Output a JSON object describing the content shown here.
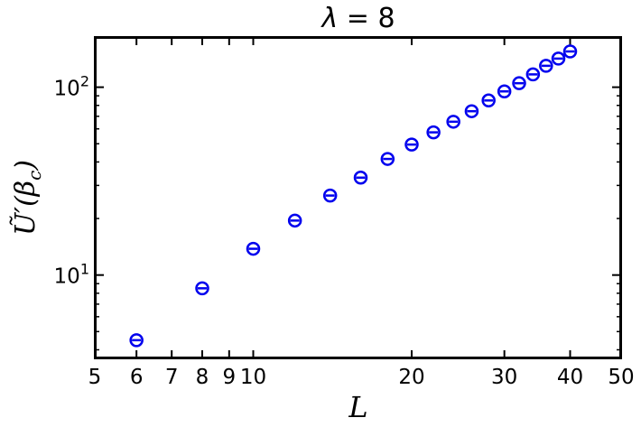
{
  "chart_data": {
    "type": "scatter",
    "title": "λ = 8",
    "xlabel": "L",
    "ylabel": "Ũ′(β_c)",
    "xscale": "log",
    "yscale": "log",
    "xlim": [
      5,
      50
    ],
    "ylim": [
      3.6,
      185
    ],
    "x_ticks": [
      {
        "value": 5,
        "label": "5"
      },
      {
        "value": 6,
        "label": "6"
      },
      {
        "value": 7,
        "label": "7"
      },
      {
        "value": 8,
        "label": "8"
      },
      {
        "value": 9,
        "label": "9"
      },
      {
        "value": 10,
        "label": "10"
      },
      {
        "value": 20,
        "label": "20"
      },
      {
        "value": 30,
        "label": "30"
      },
      {
        "value": 40,
        "label": "40"
      },
      {
        "value": 50,
        "label": "50"
      }
    ],
    "y_ticks": [
      {
        "value": 10,
        "label_base": "10",
        "label_exp": "1"
      },
      {
        "value": 100,
        "label_base": "10",
        "label_exp": "2"
      }
    ],
    "grid": false,
    "marker": "open-circle-with-errorbar",
    "series": [
      {
        "color": "#0000ee",
        "x": [
          6,
          8,
          10,
          12,
          14,
          16,
          18,
          20,
          22,
          24,
          26,
          28,
          30,
          32,
          34,
          36,
          38,
          40
        ],
        "y": [
          4.5,
          8.5,
          13.8,
          19.5,
          26.5,
          33.0,
          41.5,
          49.5,
          57.5,
          65.5,
          74.5,
          85.0,
          95.0,
          105.0,
          117.0,
          130.0,
          142.0,
          155.0
        ]
      }
    ]
  }
}
